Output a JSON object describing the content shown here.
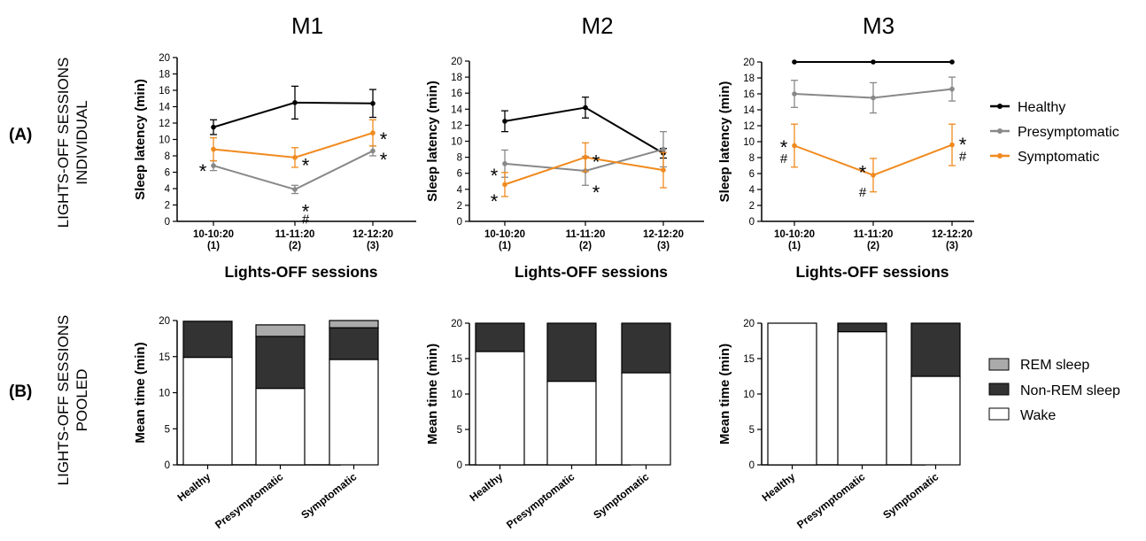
{
  "figure": {
    "panel_label_a": "(A)",
    "panel_label_b": "(B)",
    "row_a_label": [
      "LIGHTS-OFF SESSIONS",
      "INDIVIDUAL"
    ],
    "row_b_label": [
      "LIGHTS-OFF SESSIONS",
      "POOLED"
    ],
    "line_legend": [
      {
        "label": "Healthy",
        "color": "#000000"
      },
      {
        "label": "Presymptomatic",
        "color": "#888888"
      },
      {
        "label": "Symptomatic",
        "color": "#f08a1e"
      }
    ],
    "bar_legend": [
      {
        "label": "REM sleep",
        "color": "#aaaaaa"
      },
      {
        "label": "Non-REM sleep",
        "color": "#333333"
      },
      {
        "label": "Wake",
        "color": "#ffffff"
      }
    ]
  },
  "chart_data": [
    {
      "type": "line",
      "title": "M1",
      "xlabel": "Lights-OFF sessions",
      "ylabel": "Sleep latency (min)",
      "categories": [
        "10-10:20",
        "11-11:20",
        "12-12:20"
      ],
      "subcategories": [
        "(1)",
        "(2)",
        "(3)"
      ],
      "ylim": [
        0,
        20
      ],
      "yticks": [
        0,
        2,
        4,
        6,
        8,
        10,
        12,
        14,
        16,
        18,
        20
      ],
      "series": [
        {
          "name": "Healthy",
          "color": "#000000",
          "values": [
            11.5,
            14.5,
            14.4
          ],
          "err": [
            0.9,
            2.0,
            1.7
          ]
        },
        {
          "name": "Presymptomatic",
          "color": "#888888",
          "values": [
            6.8,
            3.9,
            8.6
          ],
          "err": [
            0.6,
            0.5,
            0.6
          ]
        },
        {
          "name": "Symptomatic",
          "color": "#f08a1e",
          "values": [
            8.8,
            7.8,
            10.8
          ],
          "err": [
            1.4,
            1.2,
            1.6
          ]
        }
      ],
      "annotations": [
        {
          "text": "*",
          "x": 0,
          "y": 6.6,
          "side": "left"
        },
        {
          "text": "*",
          "x": 1,
          "y": 7.3,
          "side": "right"
        },
        {
          "text": "*",
          "x": 1,
          "y": 1.7,
          "side": "right"
        },
        {
          "text": "#",
          "x": 1,
          "y": 0.4,
          "side": "right"
        },
        {
          "text": "*",
          "x": 2,
          "y": 10.5,
          "side": "right"
        },
        {
          "text": "*",
          "x": 2,
          "y": 8.0,
          "side": "right"
        }
      ]
    },
    {
      "type": "line",
      "title": "M2",
      "xlabel": "Lights-OFF sessions",
      "ylabel": "Sleep latency (min)",
      "categories": [
        "10-10:20",
        "11-11:20",
        "12-12:20"
      ],
      "subcategories": [
        "(1)",
        "(2)",
        "(3)"
      ],
      "ylim": [
        0,
        20
      ],
      "yticks": [
        0,
        2,
        4,
        6,
        8,
        10,
        12,
        14,
        16,
        18,
        20
      ],
      "series": [
        {
          "name": "Healthy",
          "color": "#000000",
          "values": [
            12.5,
            14.2,
            8.5
          ],
          "err": [
            1.3,
            1.3,
            0.6
          ]
        },
        {
          "name": "Presymptomatic",
          "color": "#888888",
          "values": [
            7.2,
            6.3,
            9.0
          ],
          "err": [
            1.7,
            1.8,
            2.2
          ]
        },
        {
          "name": "Symptomatic",
          "color": "#f08a1e",
          "values": [
            4.6,
            8.0,
            6.4
          ],
          "err": [
            1.5,
            1.8,
            2.2
          ]
        }
      ],
      "annotations": [
        {
          "text": "*",
          "x": 0,
          "y": 6.2,
          "side": "left"
        },
        {
          "text": "*",
          "x": 0,
          "y": 3.0,
          "side": "left"
        },
        {
          "text": "*",
          "x": 1,
          "y": 7.9,
          "side": "right"
        },
        {
          "text": "*",
          "x": 1,
          "y": 4.1,
          "side": "right"
        }
      ]
    },
    {
      "type": "line",
      "title": "M3",
      "xlabel": "Lights-OFF sessions",
      "ylabel": "Sleep latency (min)",
      "categories": [
        "10-10:20",
        "11-11:20",
        "12-12:20"
      ],
      "subcategories": [
        "(1)",
        "(2)",
        "(3)"
      ],
      "ylim": [
        0,
        20
      ],
      "yticks": [
        0,
        2,
        4,
        6,
        8,
        10,
        12,
        14,
        16,
        18,
        20
      ],
      "series": [
        {
          "name": "Healthy",
          "color": "#000000",
          "values": [
            20,
            20,
            20
          ],
          "err": [
            0,
            0,
            0
          ]
        },
        {
          "name": "Presymptomatic",
          "color": "#888888",
          "values": [
            16.0,
            15.5,
            16.6
          ],
          "err": [
            1.7,
            1.9,
            1.5
          ]
        },
        {
          "name": "Symptomatic",
          "color": "#f08a1e",
          "values": [
            9.5,
            5.8,
            9.6
          ],
          "err": [
            2.7,
            2.1,
            2.6
          ]
        }
      ],
      "annotations": [
        {
          "text": "*",
          "x": 0,
          "y": 9.8,
          "side": "left"
        },
        {
          "text": "#",
          "x": 0,
          "y": 8.0,
          "side": "left"
        },
        {
          "text": "*",
          "x": 1,
          "y": 6.6,
          "side": "left"
        },
        {
          "text": "#",
          "x": 1,
          "y": 3.8,
          "side": "left"
        },
        {
          "text": "*",
          "x": 2,
          "y": 10.1,
          "side": "right"
        },
        {
          "text": "#",
          "x": 2,
          "y": 8.3,
          "side": "right"
        }
      ]
    },
    {
      "type": "bar",
      "stacked": true,
      "ylabel": "Mean time (min)",
      "categories": [
        "Healthy",
        "Presymptomatic",
        "Symptomatic"
      ],
      "ylim": [
        0,
        20
      ],
      "yticks": [
        0,
        5,
        10,
        15,
        20
      ],
      "series": [
        {
          "name": "Wake",
          "color": "#ffffff",
          "values": [
            14.9,
            10.6,
            14.6
          ]
        },
        {
          "name": "Non-REM sleep",
          "color": "#333333",
          "values": [
            5.0,
            7.2,
            4.4
          ]
        },
        {
          "name": "REM sleep",
          "color": "#aaaaaa",
          "values": [
            0,
            1.6,
            1.0
          ]
        }
      ]
    },
    {
      "type": "bar",
      "stacked": true,
      "ylabel": "Mean time (min)",
      "categories": [
        "Healthy",
        "Presymptomatic",
        "Symptomatic"
      ],
      "ylim": [
        0,
        20
      ],
      "yticks": [
        0,
        5,
        10,
        15,
        20
      ],
      "series": [
        {
          "name": "Wake",
          "color": "#ffffff",
          "values": [
            16.0,
            11.8,
            13.0
          ]
        },
        {
          "name": "Non-REM sleep",
          "color": "#333333",
          "values": [
            4.0,
            8.2,
            7.0
          ]
        },
        {
          "name": "REM sleep",
          "color": "#aaaaaa",
          "values": [
            0,
            0,
            0
          ]
        }
      ]
    },
    {
      "type": "bar",
      "stacked": true,
      "ylabel": "Mean time (min)",
      "categories": [
        "Healthy",
        "Presymptomatic",
        "Symptomatic"
      ],
      "ylim": [
        0,
        20
      ],
      "yticks": [
        0,
        5,
        10,
        15,
        20
      ],
      "series": [
        {
          "name": "Wake",
          "color": "#ffffff",
          "values": [
            20.0,
            18.8,
            12.5
          ]
        },
        {
          "name": "Non-REM sleep",
          "color": "#333333",
          "values": [
            0,
            1.2,
            7.5
          ]
        },
        {
          "name": "REM sleep",
          "color": "#aaaaaa",
          "values": [
            0,
            0,
            0
          ]
        }
      ]
    }
  ]
}
